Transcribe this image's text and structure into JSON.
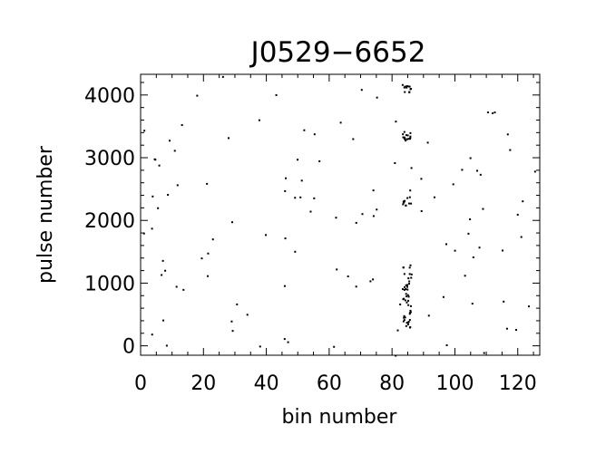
{
  "chart_data": {
    "type": "scatter",
    "title": "J0529−6652",
    "xlabel": "bin number",
    "ylabel": "pulse number",
    "xlim": [
      0,
      127
    ],
    "ylim": [
      -150,
      4330
    ],
    "xticks": [
      0,
      20,
      40,
      60,
      80,
      100,
      120
    ],
    "yticks": [
      0,
      1000,
      2000,
      3000,
      4000
    ],
    "xtick_labels": [
      "0",
      "20",
      "40",
      "60",
      "80",
      "100",
      "120"
    ],
    "ytick_labels": [
      "0",
      "1000",
      "2000",
      "3000",
      "4000"
    ],
    "grid": false,
    "legend": "none",
    "marker_color": "#000000",
    "background_density": 0.002,
    "series": [
      {
        "description": "pulse-detection dots",
        "dense_clusters": [
          {
            "x_range": [
              83,
              86
            ],
            "y_range": [
              250,
              1300
            ],
            "density": 0.15
          },
          {
            "x_range": [
              83,
              86
            ],
            "y_range": [
              2250,
              2400
            ],
            "density": 0.25
          },
          {
            "x_range": [
              83,
              86
            ],
            "y_range": [
              3250,
              3450
            ],
            "density": 0.25
          },
          {
            "x_range": [
              83,
              86
            ],
            "y_range": [
              4050,
              4180
            ],
            "density": 0.3
          }
        ]
      }
    ]
  }
}
